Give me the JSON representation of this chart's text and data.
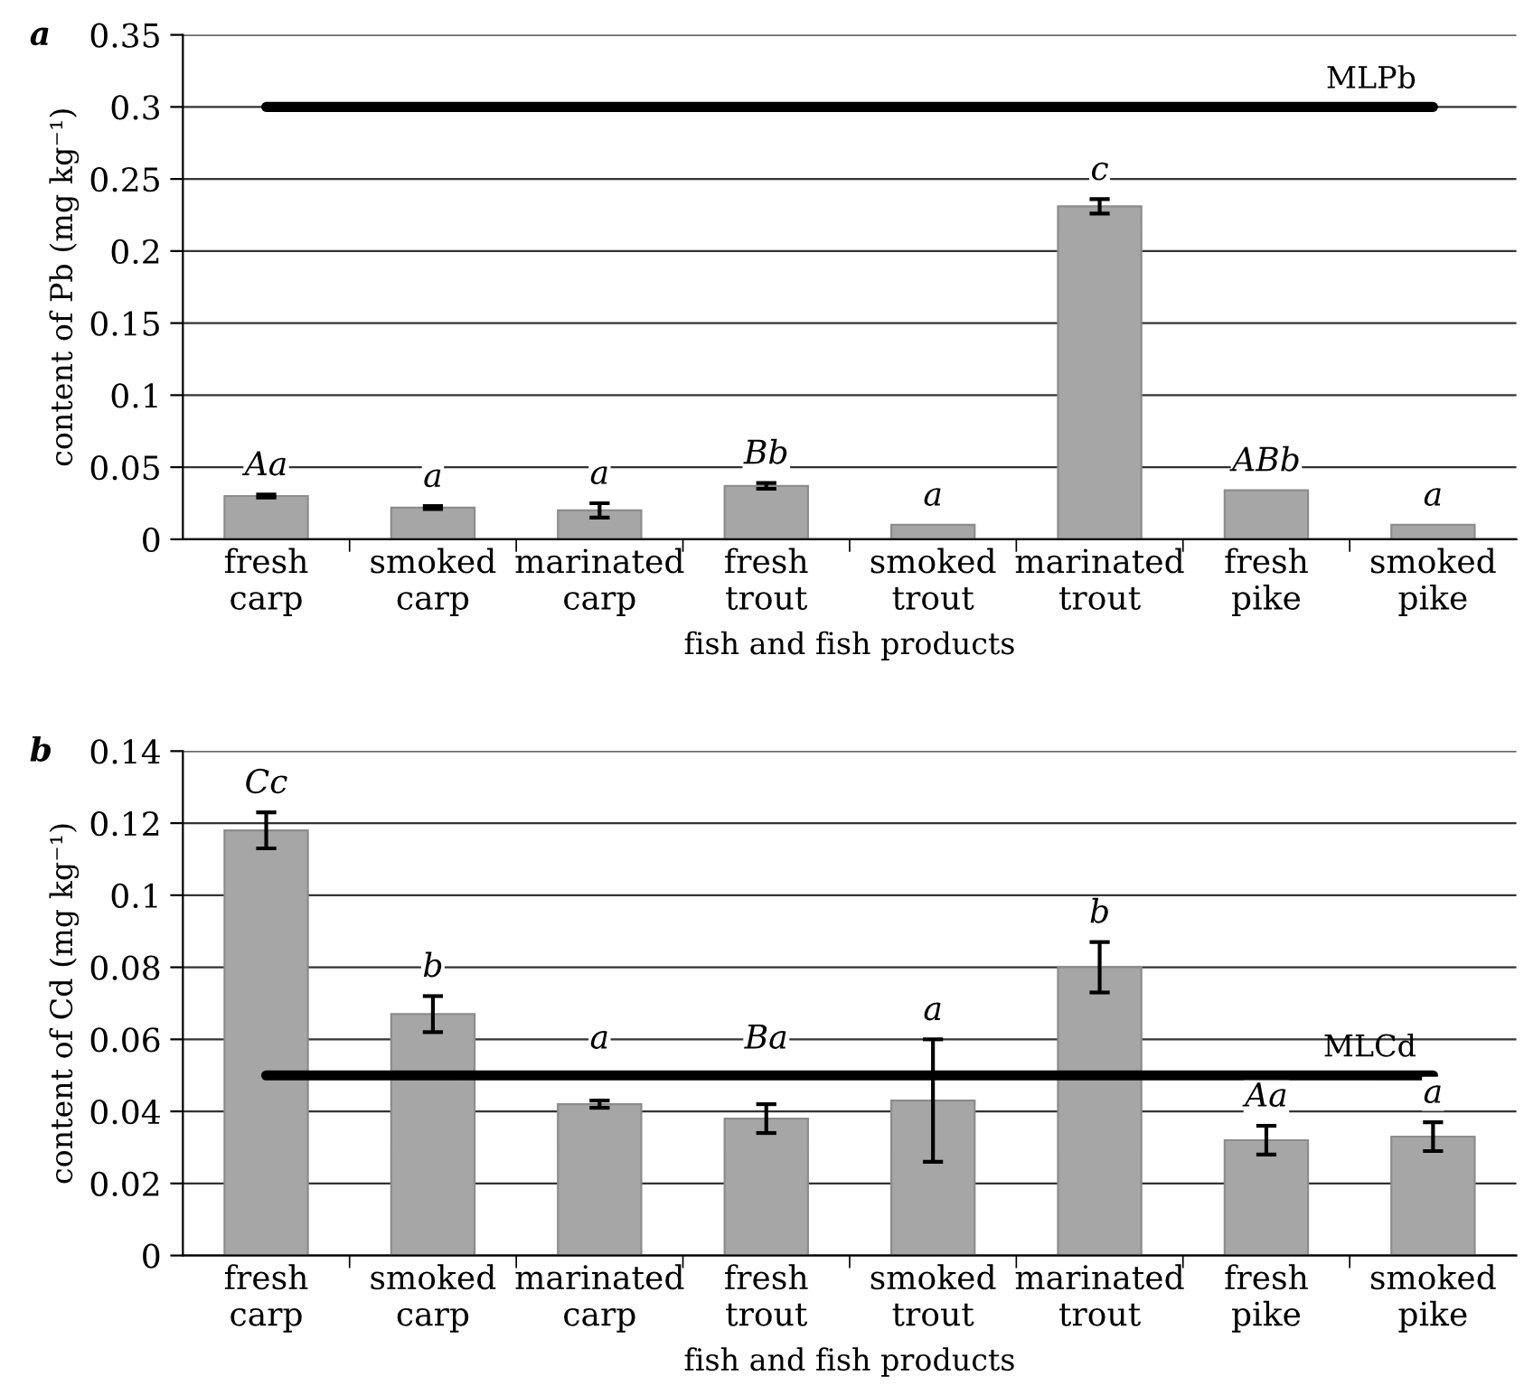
{
  "chart_data": [
    {
      "type": "bar",
      "title": "a",
      "xlabel": "fish and fish products",
      "ylabel": "content of Pb (mg kg⁻¹)",
      "categories": [
        "fresh\ncarp",
        "smoked\ncarp",
        "marinated\ncarp",
        "fresh\ntrout",
        "smoked\ntrout",
        "marinated\ntrout",
        "fresh\npike",
        "smoked\npike"
      ],
      "values": [
        0.03,
        0.022,
        0.02,
        0.037,
        0.01,
        0.231,
        0.034,
        0.01
      ],
      "errors": [
        0.001,
        0.001,
        0.005,
        0.002,
        null,
        0.005,
        null,
        null
      ],
      "color": "#a6a6a6",
      "ylim": [
        0,
        0.35
      ],
      "yticks": [
        {
          "value": 0,
          "label": "0"
        },
        {
          "value": 0.05,
          "label": "0.05"
        },
        {
          "value": 0.1,
          "label": "0.1"
        },
        {
          "value": 0.15,
          "label": "0.15"
        },
        {
          "value": 0.2,
          "label": "0.2"
        },
        {
          "value": 0.25,
          "label": "0.25"
        },
        {
          "value": 0.3,
          "label": "0.3"
        },
        {
          "value": 0.35,
          "label": "0.35"
        }
      ],
      "grid": "y",
      "ref_lines": [
        {
          "axis": "y",
          "value": 0.3,
          "label": "MLPb",
          "color": "#000000"
        }
      ],
      "annotations": [
        "Aa",
        "a",
        "a",
        "Bb",
        "a",
        "c",
        "ABb",
        "a"
      ]
    },
    {
      "type": "bar",
      "title": "b",
      "xlabel": "fish and fish products",
      "ylabel": "content of Cd (mg kg⁻¹)",
      "categories": [
        "fresh\ncarp",
        "smoked\ncarp",
        "marinated\ncarp",
        "fresh\ntrout",
        "smoked\ntrout",
        "marinated\ntrout",
        "fresh\npike",
        "smoked\npike"
      ],
      "values": [
        0.118,
        0.067,
        0.042,
        0.038,
        0.043,
        0.08,
        0.032,
        0.033
      ],
      "errors": [
        0.005,
        0.005,
        0.001,
        0.004,
        0.017,
        0.007,
        0.004,
        0.004
      ],
      "color": "#a6a6a6",
      "ylim": [
        0,
        0.14
      ],
      "yticks": [
        {
          "value": 0,
          "label": "0"
        },
        {
          "value": 0.02,
          "label": "0.02"
        },
        {
          "value": 0.04,
          "label": "0.04"
        },
        {
          "value": 0.06,
          "label": "0.06"
        },
        {
          "value": 0.08,
          "label": "0.08"
        },
        {
          "value": 0.1,
          "label": "0.1"
        },
        {
          "value": 0.12,
          "label": "0.12"
        },
        {
          "value": 0.14,
          "label": "0.14"
        }
      ],
      "grid": "y",
      "ref_lines": [
        {
          "axis": "y",
          "value": 0.05,
          "label": "MLCd",
          "color": "#000000"
        }
      ],
      "annotations": [
        "Cc",
        "b",
        "a",
        "Ba",
        "a",
        "b",
        "Aa",
        "a"
      ]
    }
  ]
}
